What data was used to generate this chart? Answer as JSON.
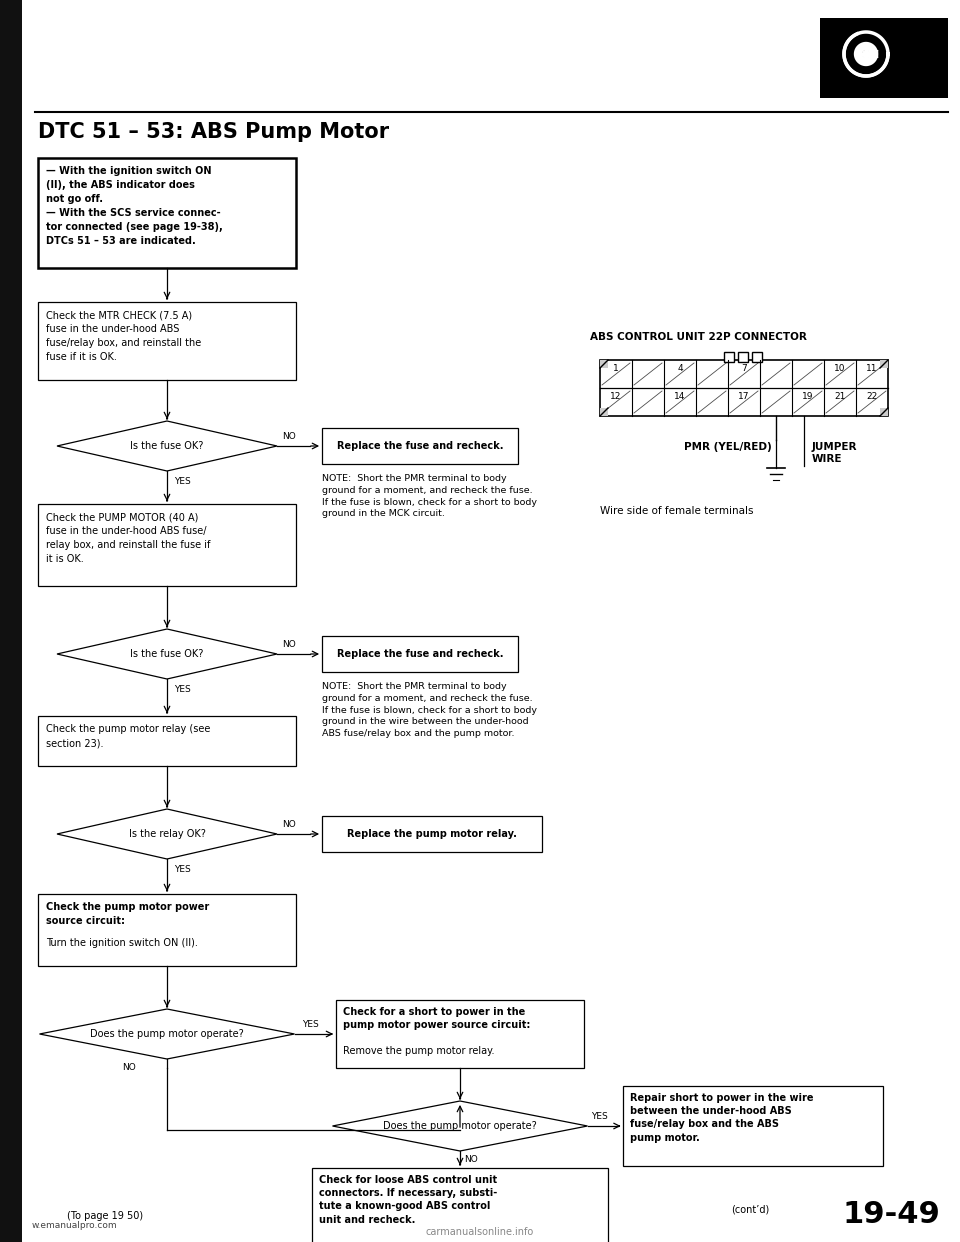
{
  "title": "DTC 51 – 53: ABS Pump Motor",
  "page_number": "19-49",
  "bg_color": "#ffffff",
  "figure_width": 9.6,
  "figure_height": 12.42,
  "footer_left": "(To page 19 50)",
  "footer_right": "(cont’d)",
  "website": "w.emanualpro.com",
  "watermark": "carmanualsonline.info",
  "box1_text": "— With the ignition switch ON\n(II), the ABS indicator does\nnot go off.\n— With the SCS service connec-\ntor connected (see page 19-38),\nDTCs 51 – 53 are indicated.",
  "box2_text": "Check the MTR CHECK (7.5 A)\nfuse in the under-hood ABS\nfuse/relay box, and reinstall the\nfuse if it is OK.",
  "box4_text": "Check the PUMP MOTOR (40 A)\nfuse in the under-hood ABS fuse/\nrelay box, and reinstall the fuse if\nit is OK.",
  "box6_text": "Check the pump motor relay (see\nsection 23).",
  "box8_text_bold": "Check the pump motor power\nsource circuit:",
  "box8_text_normal": "Turn the ignition switch ON (II).",
  "box9_text_bold": "Check for a short to power in the\npump motor power source circuit:",
  "box9_text_normal": "Remove the pump motor relay.",
  "box10_text": "Repair short to power in the wire\nbetween the under-hood ABS\nfuse/relay box and the ABS\npump motor.",
  "box11_text": "Check for loose ABS control unit\nconnectors. If necessary, substi-\ntute a known-good ABS control\nunit and recheck.",
  "d1_text": "Is the fuse OK?",
  "d2_text": "Is the fuse OK?",
  "d3_text": "Is the relay OK?",
  "d4_text": "Does the pump motor operate?",
  "d5_text": "Does the pump motor operate?",
  "no1_text": "Replace the fuse and recheck.",
  "no2_text": "Replace the fuse and recheck.",
  "no3_text": "Replace the pump motor relay.",
  "note1": "NOTE:  Short the PMR terminal to body\nground for a moment, and recheck the fuse.\nIf the fuse is blown, check for a short to body\nground in the MCK circuit.",
  "note2": "NOTE:  Short the PMR terminal to body\nground for a moment, and recheck the fuse.\nIf the fuse is blown, check for a short to body\nground in the wire between the under-hood\nABS fuse/relay box and the pump motor.",
  "conn_title": "ABS CONTROL UNIT 22P CONNECTOR",
  "conn_row1": [
    "1",
    "",
    "4",
    "",
    "7",
    "",
    "",
    "10",
    "11"
  ],
  "conn_row2": [
    "12",
    "",
    "14",
    "",
    "17",
    "",
    "19",
    "21",
    "22"
  ],
  "pmr_label": "PMR (YEL/RED)",
  "jumper_label": "JUMPER\nWIRE",
  "wire_label": "Wire side of female terminals"
}
